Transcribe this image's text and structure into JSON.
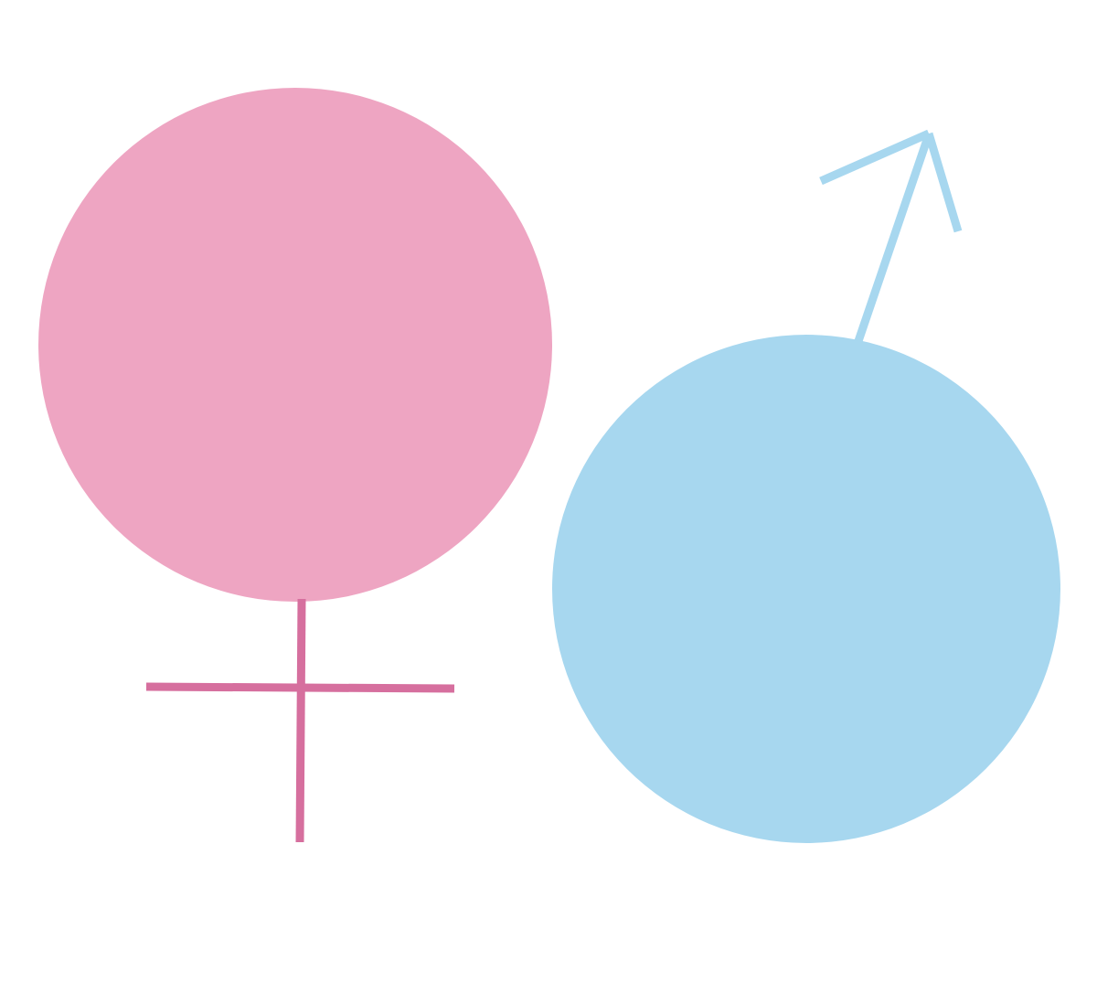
{
  "symbols": {
    "female": {
      "icon": "female-symbol-icon",
      "circle_color": "#EEA5C2",
      "stroke_color": "#D66F9E"
    },
    "male": {
      "icon": "male-symbol-icon",
      "circle_color": "#A7D7EF",
      "stroke_color": "#A7D7EF"
    }
  }
}
